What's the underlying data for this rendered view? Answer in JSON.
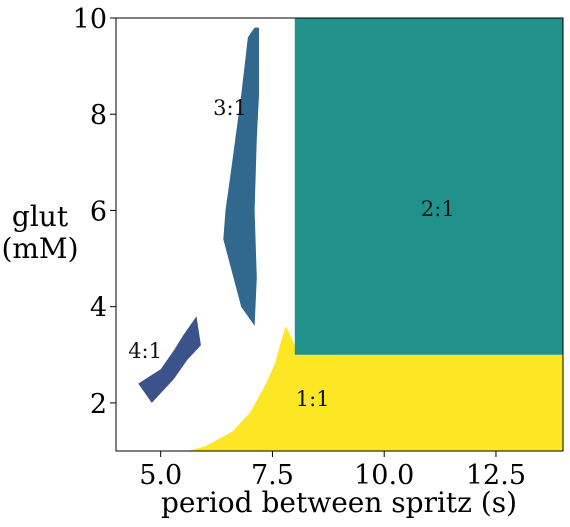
{
  "chart_data": {
    "type": "heatmap",
    "title": "",
    "xlabel": "period between spritz (s)",
    "ylabel": [
      "glut",
      "(mM)"
    ],
    "xlim": [
      4,
      14
    ],
    "ylim": [
      1,
      10
    ],
    "xticks": [
      5.0,
      7.5,
      10.0,
      12.5
    ],
    "xtick_labels": [
      "5.0",
      "7.5",
      "10.0",
      "12.5"
    ],
    "yticks": [
      2,
      4,
      6,
      8,
      10
    ],
    "ytick_labels": [
      "2",
      "4",
      "6",
      "8",
      "10"
    ],
    "grid": false,
    "colors": {
      "1:1": "#fde725",
      "2:1": "#21918c",
      "3:1": "#31688e",
      "4:1": "#3b528b",
      "5:1": "#440154",
      "other": "#35b779",
      "none": "#ffffff"
    },
    "regions": [
      {
        "name": "1:1",
        "polygon": [
          [
            5.6,
            1.0
          ],
          [
            6.0,
            1.1
          ],
          [
            6.6,
            1.4
          ],
          [
            7.0,
            1.8
          ],
          [
            7.3,
            2.3
          ],
          [
            7.55,
            2.8
          ],
          [
            7.7,
            3.3
          ],
          [
            7.8,
            3.6
          ],
          [
            8.0,
            3.2
          ],
          [
            9.0,
            3.0
          ],
          [
            14.0,
            3.0
          ],
          [
            14.0,
            1.0
          ]
        ]
      },
      {
        "name": "2:1",
        "polygon": [
          [
            8.0,
            3.0
          ],
          [
            14.0,
            3.0
          ],
          [
            14.0,
            10.0
          ],
          [
            8.0,
            10.0
          ]
        ]
      },
      {
        "name": "3:1",
        "polygon": [
          [
            7.1,
            9.8
          ],
          [
            6.95,
            9.6
          ],
          [
            6.8,
            8.4
          ],
          [
            6.6,
            7.0
          ],
          [
            6.45,
            6.0
          ],
          [
            6.4,
            5.4
          ],
          [
            6.8,
            4.0
          ],
          [
            7.1,
            3.6
          ],
          [
            7.15,
            4.6
          ],
          [
            7.1,
            6.0
          ],
          [
            7.15,
            7.5
          ],
          [
            7.2,
            8.4
          ],
          [
            7.2,
            9.8
          ]
        ]
      },
      {
        "name": "4:1",
        "polygon": [
          [
            4.5,
            2.4
          ],
          [
            5.0,
            2.7
          ],
          [
            5.3,
            3.1
          ],
          [
            5.5,
            3.4
          ],
          [
            5.8,
            3.8
          ],
          [
            5.9,
            3.2
          ],
          [
            5.6,
            2.9
          ],
          [
            5.3,
            2.5
          ],
          [
            4.8,
            2.0
          ]
        ]
      }
    ],
    "annotations": [
      {
        "text": "3:1",
        "x": 6.55,
        "y": 8.1
      },
      {
        "text": "2:1",
        "x": 11.2,
        "y": 6.0
      },
      {
        "text": "4:1",
        "x": 4.65,
        "y": 3.05
      },
      {
        "text": "1:1",
        "x": 8.4,
        "y": 2.05
      }
    ]
  }
}
